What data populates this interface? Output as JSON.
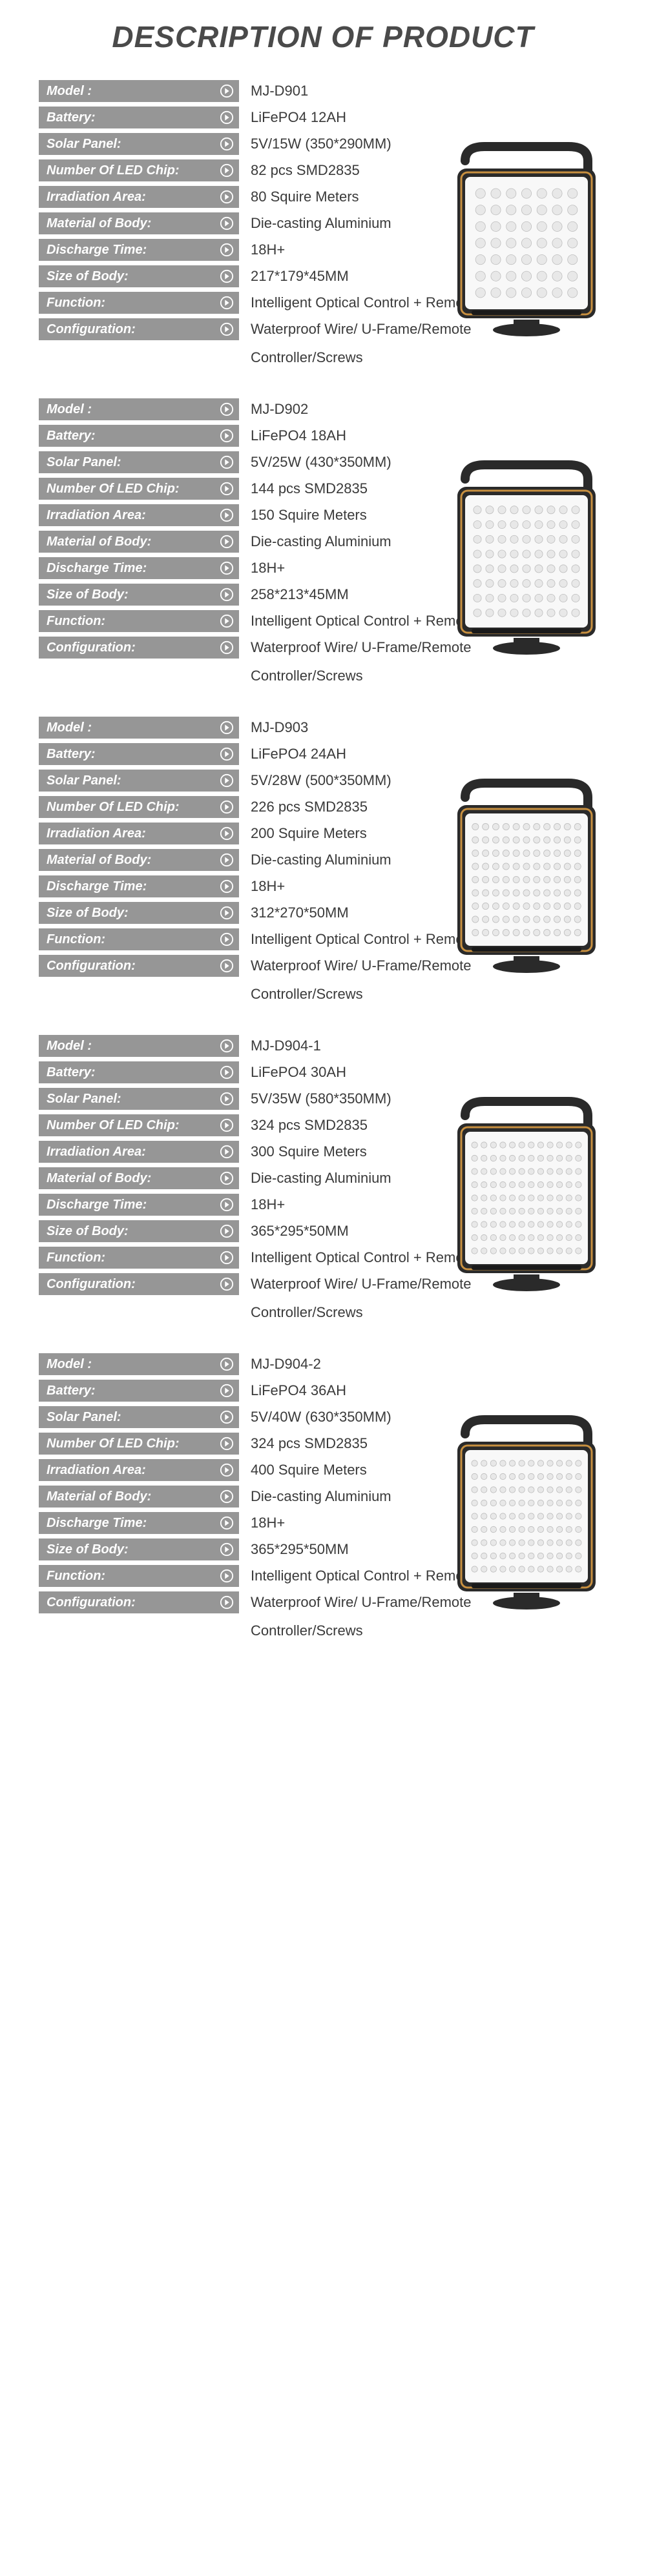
{
  "title": "DESCRIPTION OF PRODUCT",
  "labels": {
    "model": "Model :",
    "battery": "Battery:",
    "solar_panel": "Solar Panel:",
    "led_chip": "Number Of LED Chip:",
    "irradiation": "Irradiation Area:",
    "material": "Material of Body:",
    "discharge": "Discharge Time:",
    "size": "Size of Body:",
    "function": "Function:",
    "configuration": "Configuration:"
  },
  "config_line1": "Waterproof Wire/ U-Frame/Remote",
  "config_line2": "Controller/Screws",
  "function_text": "Intelligent Optical Control + Remote Control",
  "material_text": "Die-casting Aluminium",
  "discharge_text": "18H+",
  "products": [
    {
      "model": "MJ-D901",
      "battery": "LiFePO4 12AH",
      "solar_panel": "5V/15W (350*290MM)",
      "led_chip": "82 pcs SMD2835",
      "irradiation": "80 Squire Meters",
      "size": "217*179*45MM",
      "led_cols": 7,
      "led_rows": 7
    },
    {
      "model": "MJ-D902",
      "battery": "LiFePO4 18AH",
      "solar_panel": "5V/25W (430*350MM)",
      "led_chip": "144 pcs SMD2835",
      "irradiation": "150 Squire Meters",
      "size": "258*213*45MM",
      "led_cols": 9,
      "led_rows": 8
    },
    {
      "model": "MJ-D903",
      "battery": "LiFePO4 24AH",
      "solar_panel": "5V/28W (500*350MM)",
      "led_chip": "226 pcs SMD2835",
      "irradiation": "200 Squire Meters",
      "size": "312*270*50MM",
      "led_cols": 11,
      "led_rows": 9
    },
    {
      "model": "MJ-D904-1",
      "battery": "LiFePO4 30AH",
      "solar_panel": "5V/35W (580*350MM)",
      "led_chip": "324 pcs SMD2835",
      "irradiation": "300 Squire Meters",
      "size": "365*295*50MM",
      "led_cols": 12,
      "led_rows": 9
    },
    {
      "model": "MJ-D904-2",
      "battery": "LiFePO4 36AH",
      "solar_panel": "5V/40W (630*350MM)",
      "led_chip": "324 pcs SMD2835",
      "irradiation": "400 Squire Meters",
      "size": "365*295*50MM",
      "led_cols": 12,
      "led_rows": 9
    }
  ],
  "colors": {
    "label_bg": "#969696",
    "label_text": "#ffffff",
    "value_text": "#3a3a3a",
    "title_text": "#4a4a4a",
    "lamp_body": "#2a2a2a",
    "lamp_trim": "#c89040",
    "lamp_face": "#f8f8f8",
    "led_dot": "#e8e8e8",
    "led_stroke": "#bdbdbd"
  }
}
